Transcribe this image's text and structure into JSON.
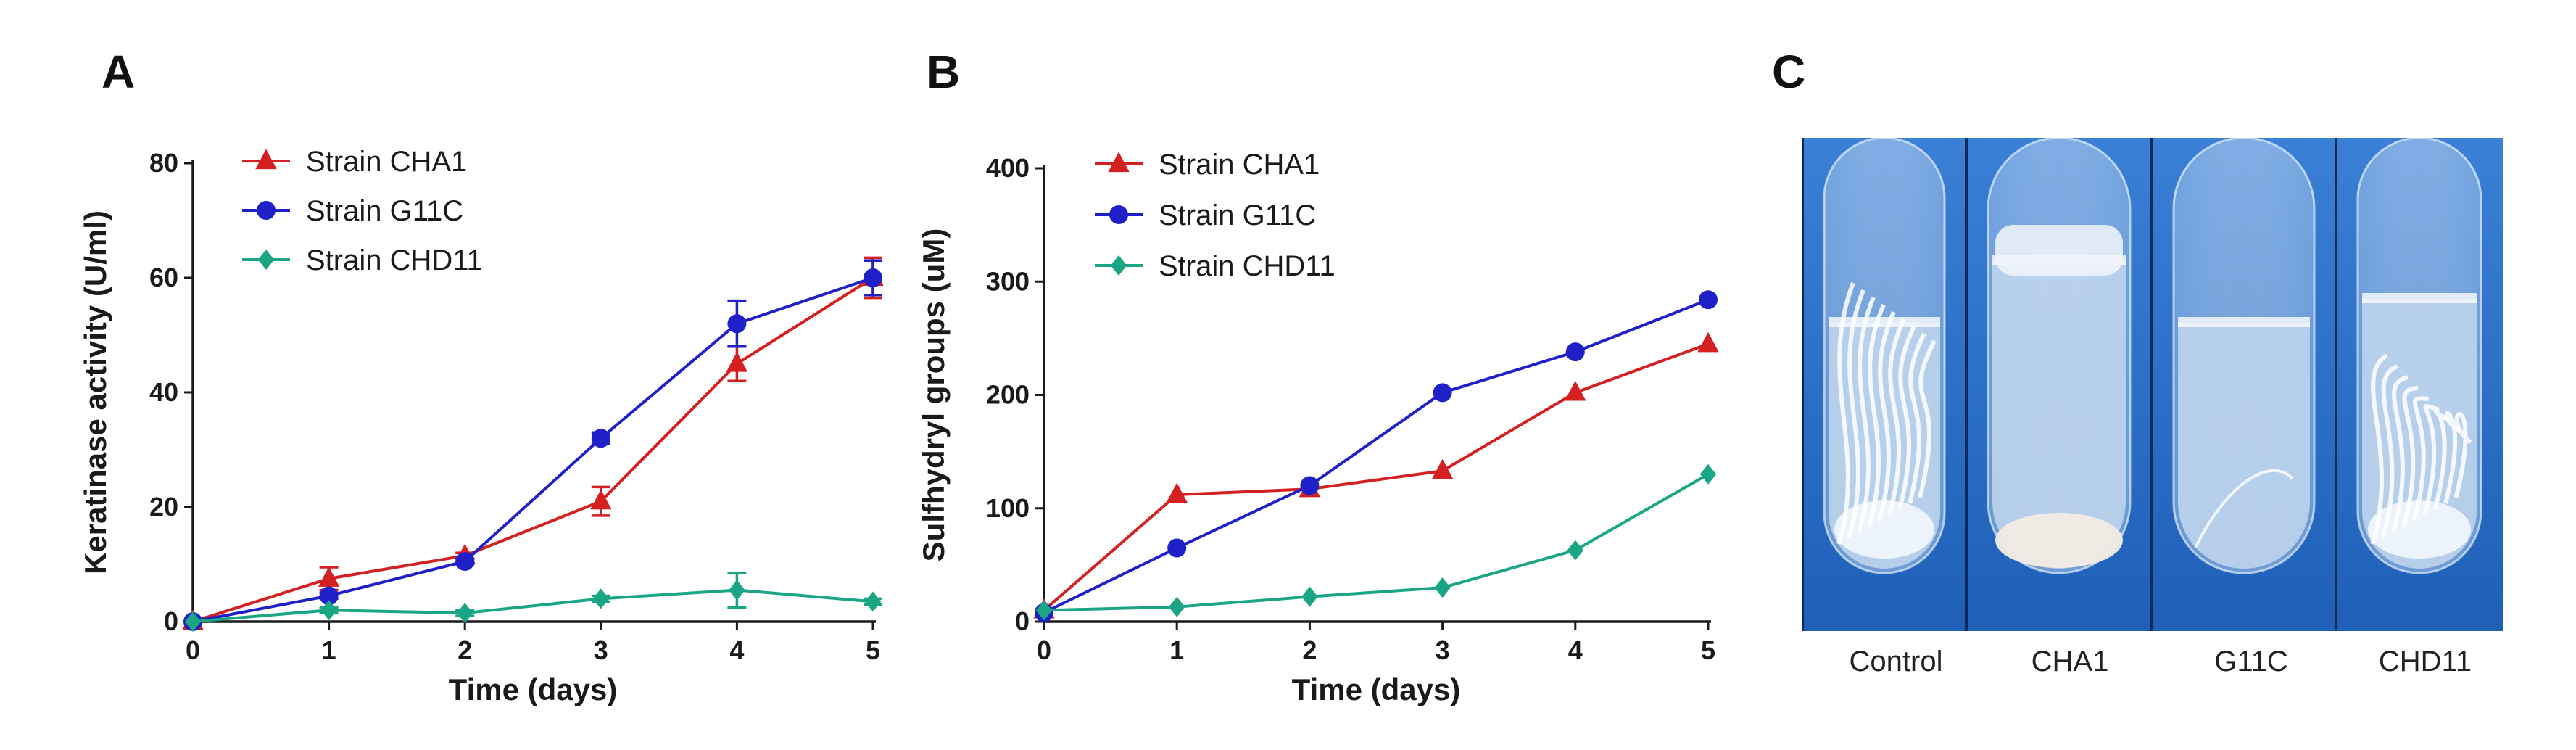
{
  "panel_letters": {
    "a": "A",
    "b": "B",
    "c": "C"
  },
  "chart_data": [
    {
      "type": "line",
      "panel": "A",
      "xlabel": "Time (days)",
      "ylabel": "Keratinase activity (U/ml)",
      "x": [
        0,
        1,
        2,
        3,
        4,
        5
      ],
      "xlim": [
        0,
        5
      ],
      "ylim": [
        0,
        80
      ],
      "yticks": [
        0,
        20,
        40,
        60,
        80
      ],
      "grid": false,
      "legend_position": "top-left",
      "series": [
        {
          "name": "Strain CHA1",
          "color": "#d42020",
          "marker": "triangle",
          "values": [
            0,
            7.5,
            11.5,
            21,
            45,
            60
          ],
          "errors": [
            0,
            2,
            0.5,
            2.5,
            3,
            3.5
          ]
        },
        {
          "name": "Strain G11C",
          "color": "#2020c8",
          "marker": "circle",
          "values": [
            0,
            4.5,
            10.5,
            32,
            52,
            60
          ],
          "errors": [
            0,
            0.5,
            0.5,
            1,
            4,
            3
          ]
        },
        {
          "name": "Strain CHD11",
          "color": "#1aa584",
          "marker": "diamond",
          "values": [
            0,
            2,
            1.5,
            4,
            5.5,
            3.5
          ],
          "errors": [
            0,
            0.5,
            0.5,
            0.5,
            3,
            0.5
          ]
        }
      ]
    },
    {
      "type": "line",
      "panel": "B",
      "xlabel": "Time (days)",
      "ylabel": "Sulfhydryl groups (uM)",
      "x": [
        0,
        1,
        2,
        3,
        4,
        5
      ],
      "xlim": [
        0,
        5
      ],
      "ylim": [
        0,
        400
      ],
      "yticks": [
        0,
        100,
        200,
        300,
        400
      ],
      "grid": false,
      "legend_position": "top-left",
      "series": [
        {
          "name": "Strain CHA1",
          "color": "#d42020",
          "marker": "triangle",
          "values": [
            10,
            112,
            117,
            133,
            202,
            245
          ]
        },
        {
          "name": "Strain G11C",
          "color": "#2020c8",
          "marker": "circle",
          "values": [
            8,
            65,
            120,
            202,
            238,
            284
          ]
        },
        {
          "name": "Strain CHD11",
          "color": "#1aa584",
          "marker": "diamond",
          "values": [
            10,
            13,
            22,
            30,
            63,
            130
          ]
        }
      ]
    }
  ],
  "photo": {
    "labels": [
      "Control",
      "CHA1",
      "G11C",
      "CHD11"
    ],
    "background_color": "#1f5fb8",
    "liquid_color": "#c9dcef"
  }
}
